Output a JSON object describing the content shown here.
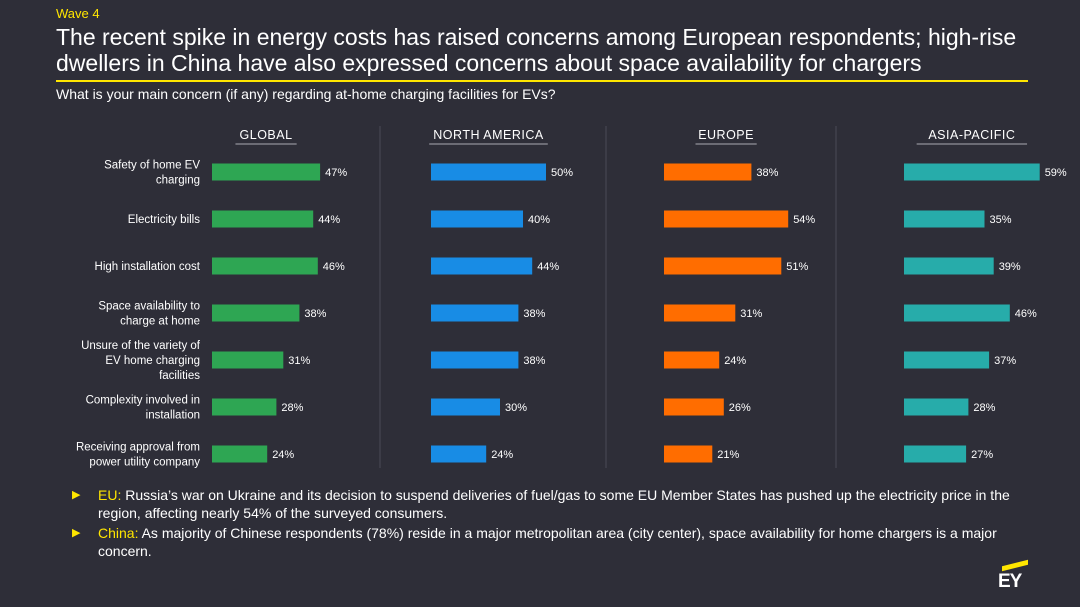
{
  "header": {
    "wave": "Wave 4",
    "title": "The recent spike in energy costs has raised concerns among European respondents; high-rise dwellers in China have also expressed concerns about space availability for chargers",
    "question": "What is your main concern (if any) regarding at-home charging facilities for EVs?"
  },
  "chart_data": {
    "type": "bar",
    "orientation": "horizontal",
    "categories": [
      "Safety of home EV charging",
      "Electricity bills",
      "High installation cost",
      "Space availability to charge at home",
      "Unsure of the variety of EV home charging facilities",
      "Complexity involved in installation",
      "Receiving approval from power utility company"
    ],
    "category_lines": [
      [
        "Safety of home EV",
        "charging"
      ],
      [
        "Electricity bills"
      ],
      [
        "High installation cost"
      ],
      [
        "Space availability to",
        "charge at home"
      ],
      [
        "Unsure of the variety of",
        "EV home charging",
        "facilities"
      ],
      [
        "Complexity involved in",
        "installation"
      ],
      [
        "Receiving approval from",
        "power utility company"
      ]
    ],
    "series": [
      {
        "name": "GLOBAL",
        "color": "#2ea653",
        "values": [
          47,
          44,
          46,
          38,
          31,
          28,
          24
        ]
      },
      {
        "name": "NORTH AMERICA",
        "color": "#188ce5",
        "values": [
          50,
          40,
          44,
          38,
          38,
          30,
          24
        ]
      },
      {
        "name": "EUROPE",
        "color": "#ff6d00",
        "values": [
          38,
          54,
          51,
          31,
          24,
          26,
          21
        ]
      },
      {
        "name": "ASIA-PACIFIC",
        "color": "#27acaa",
        "values": [
          59,
          35,
          39,
          46,
          37,
          28,
          27
        ]
      }
    ],
    "value_suffix": "%"
  },
  "notes": [
    {
      "lead": "EU:",
      "text": " Russia’s war on Ukraine and its decision to suspend deliveries of fuel/gas to some EU Member States has pushed up the electricity price in the region, affecting nearly 54% of the surveyed consumers."
    },
    {
      "lead": "China:",
      "text": " As majority of Chinese respondents (78%) reside in a major metropolitan area (city center), space availability for home chargers is a major concern."
    }
  ],
  "logo": {
    "text": "EY"
  }
}
